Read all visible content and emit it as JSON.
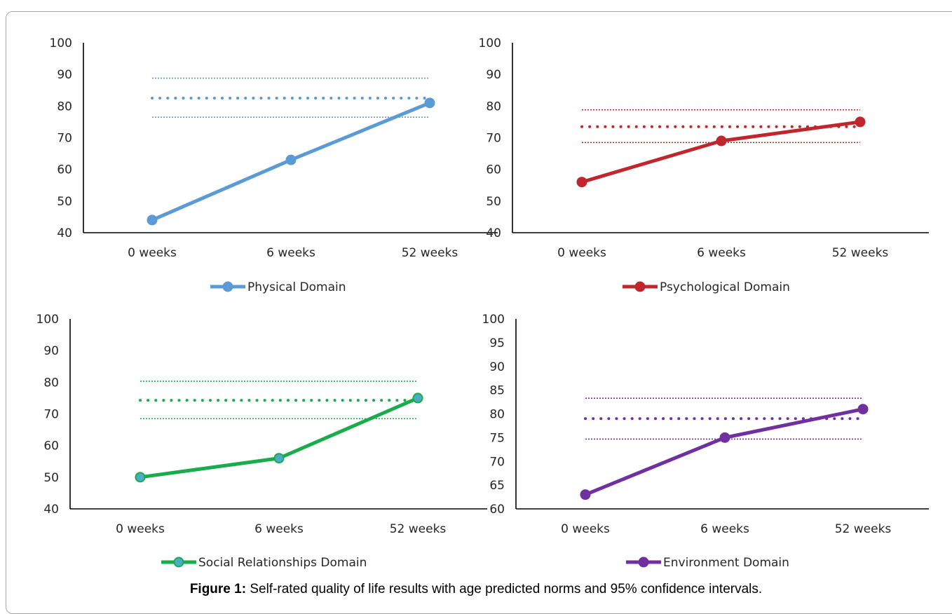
{
  "chart_data": [
    {
      "type": "line",
      "categories": [
        "0 weeks",
        "6 weeks",
        "52 weeks"
      ],
      "series": [
        {
          "name": "Physical Domain",
          "values": [
            44,
            63,
            81
          ]
        }
      ],
      "norm": {
        "mean": 82.5,
        "ci_lower": 76.5,
        "ci_upper": 88.8
      },
      "ylim": [
        40,
        100
      ],
      "yticks": [
        40,
        50,
        60,
        70,
        80,
        90,
        100
      ],
      "color": "#5b9bd5",
      "legend_position": "bottom",
      "grid": false
    },
    {
      "type": "line",
      "categories": [
        "0 weeks",
        "6 weeks",
        "52 weeks"
      ],
      "series": [
        {
          "name": "Psychological Domain",
          "values": [
            56,
            69,
            75
          ]
        }
      ],
      "norm": {
        "mean": 73.5,
        "ci_lower": 68.5,
        "ci_upper": 78.8
      },
      "ylim": [
        40,
        100
      ],
      "yticks": [
        40,
        50,
        60,
        70,
        80,
        90,
        100
      ],
      "color": "#c0272d",
      "legend_position": "bottom",
      "grid": false
    },
    {
      "type": "line",
      "categories": [
        "0 weeks",
        "6 weeks",
        "52 weeks"
      ],
      "series": [
        {
          "name": "Social Relationships Domain",
          "values": [
            50,
            56,
            75
          ]
        }
      ],
      "norm": {
        "mean": 74.3,
        "ci_lower": 68.5,
        "ci_upper": 80.3
      },
      "ylim": [
        40,
        100
      ],
      "yticks": [
        40,
        50,
        60,
        70,
        80,
        90,
        100
      ],
      "color": "#1aab4b",
      "marker_fill": "#4bacc6",
      "legend_position": "bottom",
      "grid": false
    },
    {
      "type": "line",
      "categories": [
        "0 weeks",
        "6 weeks",
        "52 weeks"
      ],
      "series": [
        {
          "name": "Environment Domain",
          "values": [
            63,
            75,
            81
          ]
        }
      ],
      "norm": {
        "mean": 79,
        "ci_lower": 74.7,
        "ci_upper": 83.3
      },
      "ylim": [
        60,
        100
      ],
      "yticks": [
        60,
        65,
        70,
        75,
        80,
        85,
        90,
        95,
        100
      ],
      "color": "#7030a0",
      "legend_position": "bottom",
      "grid": false
    }
  ],
  "caption": {
    "label": "Figure 1:",
    "text": " Self-rated quality of life results with age predicted norms and 95% confidence intervals."
  }
}
